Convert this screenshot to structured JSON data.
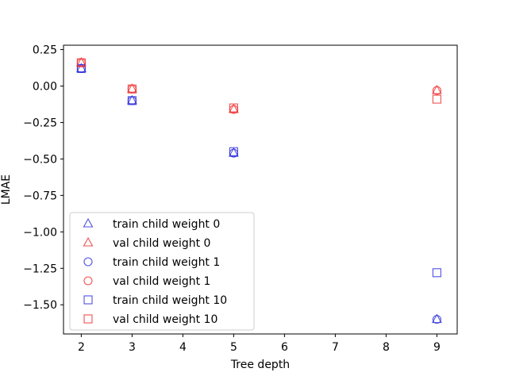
{
  "chart_data": {
    "type": "scatter",
    "xlabel": "Tree depth",
    "ylabel": "LMAE",
    "xlim": [
      1.65,
      9.4
    ],
    "ylim": [
      -1.7,
      0.28
    ],
    "xticks": [
      2,
      3,
      4,
      5,
      6,
      7,
      8,
      9
    ],
    "yticks": [
      0.25,
      0.0,
      -0.25,
      -0.5,
      -0.75,
      -1.0,
      -1.25,
      -1.5
    ],
    "ytick_labels": [
      "0.25",
      "0.00",
      "−0.25",
      "−0.50",
      "−0.75",
      "−1.00",
      "−1.25",
      "−1.50"
    ],
    "grid": false,
    "legend_position": "lower-left",
    "series": [
      {
        "name": "train child weight 0",
        "marker": "triangle",
        "color": "#3333dd",
        "x": [
          2,
          3,
          5,
          9
        ],
        "y": [
          0.12,
          -0.1,
          -0.46,
          -1.6
        ]
      },
      {
        "name": "val child weight 0",
        "marker": "triangle",
        "color": "#ee3333",
        "x": [
          2,
          3,
          5,
          9
        ],
        "y": [
          0.16,
          -0.02,
          -0.16,
          -0.03
        ]
      },
      {
        "name": "train child weight 1",
        "marker": "circle",
        "color": "#3333dd",
        "x": [
          2,
          3,
          5,
          9
        ],
        "y": [
          0.12,
          -0.1,
          -0.46,
          -1.6
        ]
      },
      {
        "name": "val child weight 1",
        "marker": "circle",
        "color": "#ee3333",
        "x": [
          2,
          3,
          5,
          9
        ],
        "y": [
          0.16,
          -0.02,
          -0.16,
          -0.03
        ]
      },
      {
        "name": "train child weight 10",
        "marker": "square",
        "color": "#3333dd",
        "x": [
          2,
          3,
          5,
          9
        ],
        "y": [
          0.12,
          -0.1,
          -0.45,
          -1.28
        ]
      },
      {
        "name": "val child weight 10",
        "marker": "square",
        "color": "#ee3333",
        "x": [
          2,
          3,
          5,
          9
        ],
        "y": [
          0.16,
          -0.02,
          -0.15,
          -0.09
        ]
      }
    ]
  }
}
